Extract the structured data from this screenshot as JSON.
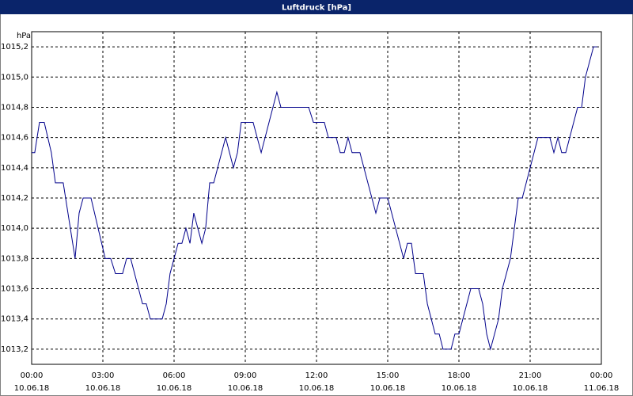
{
  "chart_data": {
    "type": "line",
    "title": "Luftdruck [hPa]",
    "y_unit": "hPa",
    "x": [
      0,
      0.13,
      0.33,
      0.53,
      0.83,
      1.0,
      1.33,
      1.83,
      2.0,
      2.17,
      2.5,
      3.1,
      3.33,
      3.53,
      3.83,
      4.0,
      4.17,
      4.67,
      4.83,
      5.0,
      5.5,
      5.67,
      5.83,
      6.17,
      6.33,
      6.5,
      6.67,
      6.83,
      7.17,
      7.33,
      7.5,
      7.67,
      8.17,
      8.5,
      8.67,
      8.83,
      9.33,
      9.67,
      10.0,
      10.33,
      10.5,
      11.67,
      11.87,
      12.33,
      12.5,
      12.83,
      13.0,
      13.17,
      13.33,
      13.5,
      13.83,
      14.5,
      14.67,
      15.0,
      15.67,
      15.83,
      16.0,
      16.17,
      16.5,
      16.67,
      17.0,
      17.17,
      17.33,
      17.67,
      17.83,
      18.0,
      18.5,
      18.83,
      19.0,
      19.17,
      19.33,
      19.67,
      19.83,
      20.17,
      20.5,
      20.67,
      21.33,
      21.83,
      22.0,
      22.17,
      22.33,
      22.5,
      23.0,
      23.17,
      23.33,
      23.67,
      23.83
    ],
    "series": [
      {
        "name": "Luftdruck",
        "color": "#00008b",
        "values": [
          1014.5,
          1014.5,
          1014.7,
          1014.7,
          1014.5,
          1014.3,
          1014.3,
          1013.8,
          1014.1,
          1014.2,
          1014.2,
          1013.8,
          1013.8,
          1013.7,
          1013.7,
          1013.8,
          1013.8,
          1013.5,
          1013.5,
          1013.4,
          1013.4,
          1013.5,
          1013.7,
          1013.9,
          1013.9,
          1014.0,
          1013.9,
          1014.1,
          1013.9,
          1014.0,
          1014.3,
          1014.3,
          1014.6,
          1014.4,
          1014.5,
          1014.7,
          1014.7,
          1014.5,
          1014.7,
          1014.9,
          1014.8,
          1014.8,
          1014.7,
          1014.7,
          1014.6,
          1014.6,
          1014.5,
          1014.5,
          1014.6,
          1014.5,
          1014.5,
          1014.1,
          1014.2,
          1014.2,
          1013.8,
          1013.9,
          1013.9,
          1013.7,
          1013.7,
          1013.5,
          1013.3,
          1013.3,
          1013.2,
          1013.2,
          1013.3,
          1013.3,
          1013.6,
          1013.6,
          1013.5,
          1013.3,
          1013.2,
          1013.4,
          1013.6,
          1013.8,
          1014.2,
          1014.2,
          1014.6,
          1014.6,
          1014.5,
          1014.6,
          1014.5,
          1014.5,
          1014.8,
          1014.8,
          1015.0,
          1015.2,
          1015.2
        ]
      }
    ],
    "xlim": [
      0,
      24
    ],
    "xticks": [
      {
        "value": 0,
        "label": "00:00"
      },
      {
        "value": 3,
        "label": "03:00"
      },
      {
        "value": 6,
        "label": "06:00"
      },
      {
        "value": 9,
        "label": "09:00"
      },
      {
        "value": 12,
        "label": "12:00"
      },
      {
        "value": 15,
        "label": "15:00"
      },
      {
        "value": 18,
        "label": "18:00"
      },
      {
        "value": 21,
        "label": "21:00"
      },
      {
        "value": 24,
        "label": "00:00"
      }
    ],
    "xtick_dates": [
      "10.06.18",
      "10.06.18",
      "10.06.18",
      "10.06.18",
      "10.06.18",
      "10.06.18",
      "10.06.18",
      "10.06.18",
      "11.06.18"
    ],
    "ylim": [
      1013.1,
      1015.3
    ],
    "yticks": [
      {
        "value": 1013.2,
        "label": "1013,2"
      },
      {
        "value": 1013.4,
        "label": "1013,4"
      },
      {
        "value": 1013.6,
        "label": "1013,6"
      },
      {
        "value": 1013.8,
        "label": "1013,8"
      },
      {
        "value": 1014.0,
        "label": "1014,0"
      },
      {
        "value": 1014.2,
        "label": "1014,2"
      },
      {
        "value": 1014.4,
        "label": "1014,4"
      },
      {
        "value": 1014.6,
        "label": "1014,6"
      },
      {
        "value": 1014.8,
        "label": "1014,8"
      },
      {
        "value": 1015.0,
        "label": "1015,0"
      },
      {
        "value": 1015.2,
        "label": "1015,2"
      }
    ],
    "grid": true
  }
}
